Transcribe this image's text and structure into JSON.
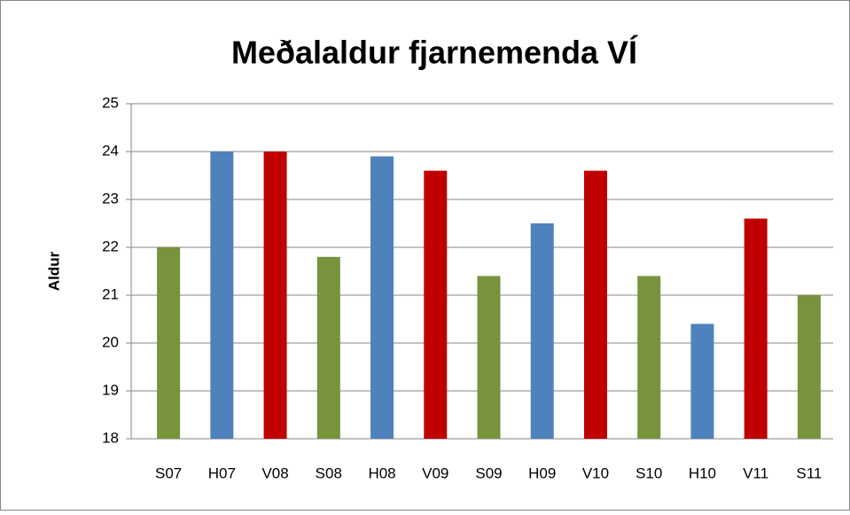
{
  "chart_data": {
    "type": "bar",
    "title": "Meðalaldur fjarnemenda VÍ",
    "y_label": "Aldur",
    "categories": [
      "S07",
      "H07",
      "V08",
      "S08",
      "H08",
      "V09",
      "S09",
      "H09",
      "V10",
      "S10",
      "H10",
      "V11",
      "S11"
    ],
    "values": [
      22,
      24,
      24,
      21.8,
      23.9,
      23.6,
      21.4,
      22.5,
      23.6,
      21.4,
      20.4,
      22.6,
      21
    ],
    "colors": [
      "#77933c",
      "#4f81bd",
      "#c00000",
      "#77933c",
      "#4f81bd",
      "#c00000",
      "#77933c",
      "#4f81bd",
      "#c00000",
      "#77933c",
      "#4f81bd",
      "#c00000",
      "#77933c"
    ],
    "ylim": [
      18,
      25
    ],
    "yticks": [
      18,
      19,
      20,
      21,
      22,
      23,
      24,
      25
    ],
    "grid": true
  }
}
